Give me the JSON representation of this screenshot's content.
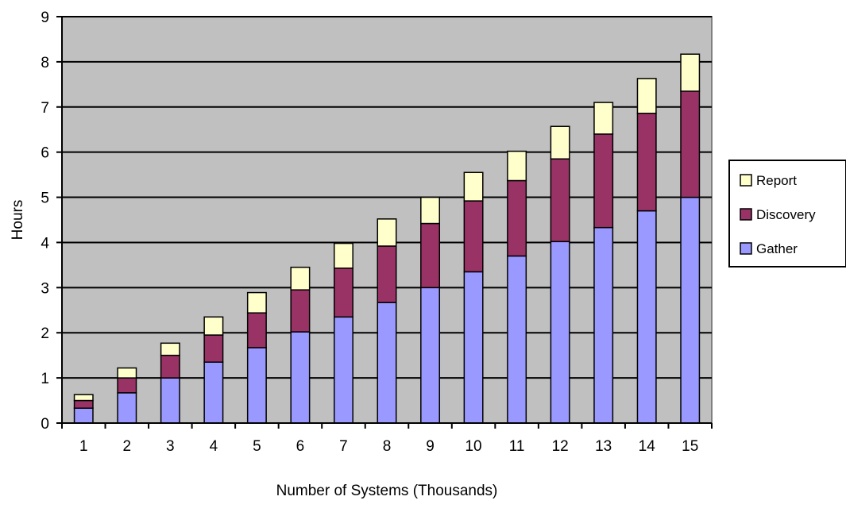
{
  "chart_data": {
    "type": "bar",
    "stacked": true,
    "xlabel": "Number of Systems (Thousands)",
    "ylabel": "Hours",
    "ylim": [
      0,
      9
    ],
    "y_ticks": [
      "0",
      "1",
      "2",
      "3",
      "4",
      "5",
      "6",
      "7",
      "8",
      "9"
    ],
    "categories": [
      "1",
      "2",
      "3",
      "4",
      "5",
      "6",
      "7",
      "8",
      "9",
      "10",
      "11",
      "12",
      "13",
      "14",
      "15"
    ],
    "grid": true,
    "plot_background": "#c0c0c0",
    "legend_position": "right",
    "series": [
      {
        "name": "Gather",
        "color": "#9999ff",
        "values": [
          0.33,
          0.67,
          1.0,
          1.35,
          1.67,
          2.02,
          2.35,
          2.67,
          3.0,
          3.35,
          3.7,
          4.02,
          4.33,
          4.7,
          5.0
        ]
      },
      {
        "name": "Discovery",
        "color": "#993366",
        "values": [
          0.17,
          0.33,
          0.5,
          0.6,
          0.77,
          0.93,
          1.08,
          1.25,
          1.42,
          1.57,
          1.67,
          1.83,
          2.07,
          2.16,
          2.35
        ]
      },
      {
        "name": "Report",
        "color": "#ffffcc",
        "values": [
          0.13,
          0.22,
          0.27,
          0.4,
          0.45,
          0.5,
          0.55,
          0.6,
          0.58,
          0.63,
          0.65,
          0.72,
          0.7,
          0.77,
          0.82
        ]
      }
    ],
    "legend_order": [
      "Report",
      "Discovery",
      "Gather"
    ]
  }
}
